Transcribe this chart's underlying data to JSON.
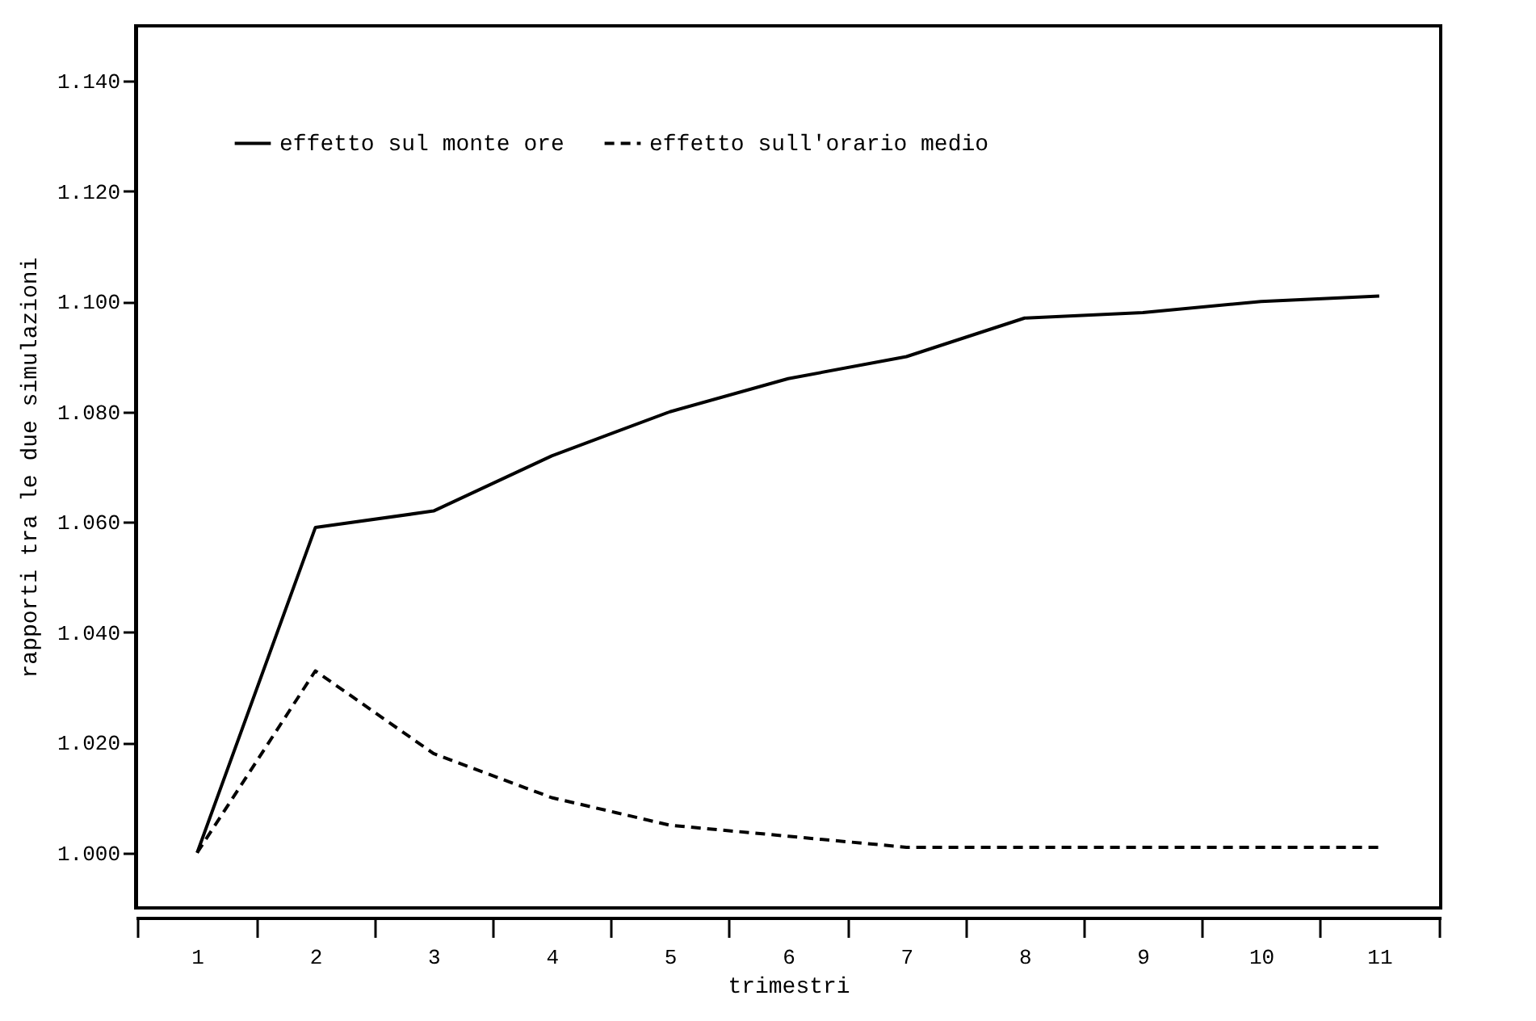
{
  "chart_data": {
    "type": "line",
    "xlabel": "trimestri",
    "ylabel": "rapporti tra le due simulazioni",
    "categories": [
      "1",
      "2",
      "3",
      "4",
      "5",
      "6",
      "7",
      "8",
      "9",
      "10",
      "11"
    ],
    "series": [
      {
        "name": "effetto sul monte ore",
        "color": "#000000",
        "line_style": "solid",
        "values": [
          1.0,
          1.059,
          1.062,
          1.072,
          1.08,
          1.086,
          1.09,
          1.097,
          1.098,
          1.1,
          1.101
        ]
      },
      {
        "name": "effetto sull'orario medio",
        "color": "#000000",
        "line_style": "dashed",
        "values": [
          1.0,
          1.033,
          1.018,
          1.01,
          1.005,
          1.003,
          1.001,
          1.001,
          1.001,
          1.001,
          1.001
        ]
      }
    ],
    "ylim": [
      0.99,
      1.15
    ],
    "yticks": [
      {
        "value": 1.0,
        "label": "1.000"
      },
      {
        "value": 1.02,
        "label": "1.020"
      },
      {
        "value": 1.04,
        "label": "1.040"
      },
      {
        "value": 1.06,
        "label": "1.060"
      },
      {
        "value": 1.08,
        "label": "1.080"
      },
      {
        "value": 1.1,
        "label": "1.100"
      },
      {
        "value": 1.12,
        "label": "1.120"
      },
      {
        "value": 1.14,
        "label": "1.140"
      }
    ],
    "grid": false,
    "legend": "top left",
    "marker": "none"
  }
}
